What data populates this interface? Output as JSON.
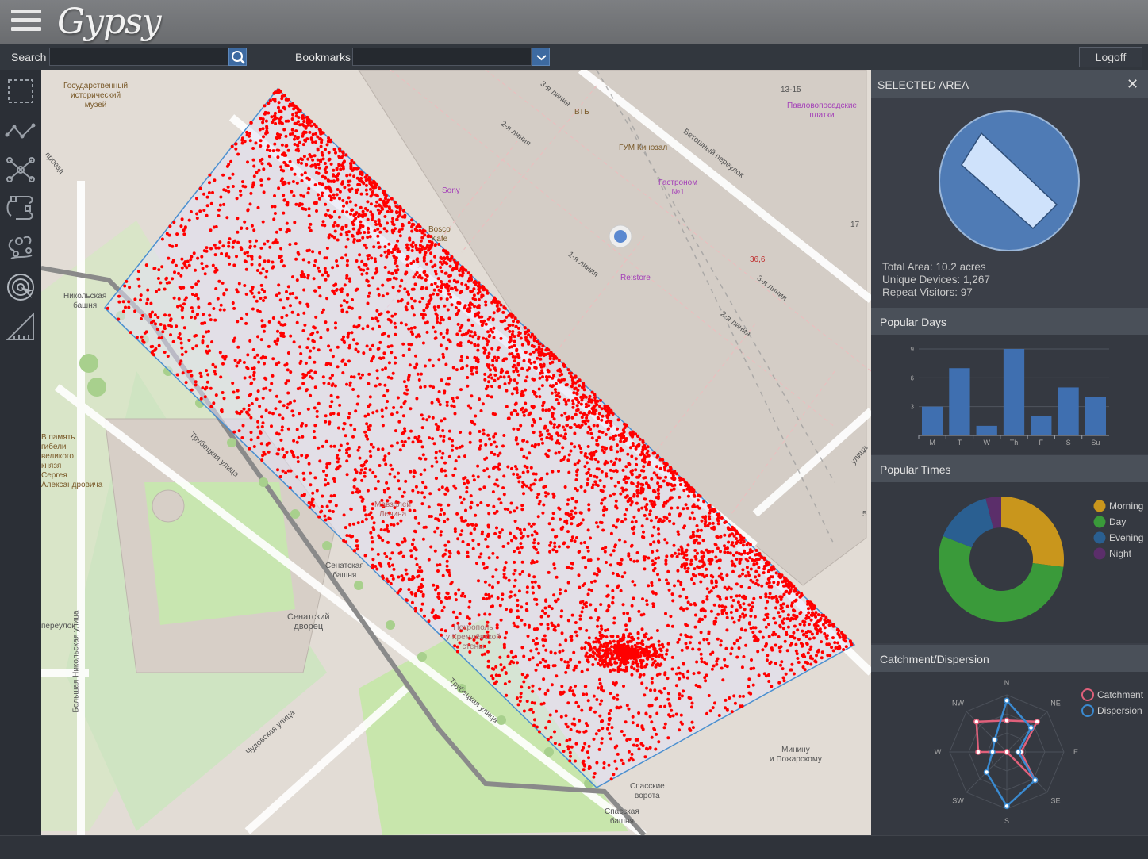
{
  "app": {
    "logo": "Gypsy"
  },
  "toolbar": {
    "search_label": "Search",
    "search_value": "",
    "bookmarks_label": "Bookmarks",
    "bookmarks_value": "",
    "logoff_label": "Logoff"
  },
  "tools": [
    {
      "name": "select-rectangle-icon"
    },
    {
      "name": "polyline-icon"
    },
    {
      "name": "network-icon"
    },
    {
      "name": "route-icon"
    },
    {
      "name": "flow-icon"
    },
    {
      "name": "target-icon"
    },
    {
      "name": "ruler-icon"
    }
  ],
  "map": {
    "labels": {
      "museum": "Государственный\nисторический\nмузей",
      "sony": "Sony",
      "vtb": "ВТБ",
      "gum_cinema": "ГУМ Кинозал",
      "gastronom": "Гастроном\n№1",
      "restore": "Re:store",
      "pharmacy": "36,6",
      "shawls": "Павловопосадские\nплатки",
      "house_num": "13-15",
      "num17": "17",
      "num5": "5",
      "line1": "1-я линия",
      "line2a": "2-я линия",
      "line2b": "2-я линия",
      "line3a": "3-я линия",
      "line3b": "3-я линия",
      "vetoshny": "Ветошный переулок",
      "nikolskaya_tower": "Никольская\nбашня",
      "senate_tower": "Сенатская\nбашня",
      "senate_palace": "Сенатский\nдворец",
      "trubetskaya1": "Трубецкая улица",
      "trubetskaya2": "Трубецкая улица",
      "chudovskaya": "Чудовская улица",
      "b_nikolskaya": "Большая Никольская улица",
      "mausoleum": "Мавзолей\nЛенина",
      "necropolis": "Некрополь\nу Кремлёвской\nстены",
      "spasskie": "Спасские\nворота",
      "spasskaya": "Спасская\nбашня",
      "minin": "Минину\nи Пожарскому",
      "memorial": "В память\nгибели\nвеликого\nкнязя\nСергея\nАлександровича",
      "pereulok": "переулок",
      "proezd": "проезд",
      "ulitsa": "улица",
      "bosco": "Bosco\nKafe"
    }
  },
  "panel": {
    "title": "SELECTED AREA",
    "close": "✕",
    "stats": {
      "total_area": "Total Area: 10.2 acres",
      "unique_devices": "Unique Devices: 1,267",
      "repeat_visitors": "Repeat Visitors: 97"
    },
    "popular_days_title": "Popular Days",
    "popular_times_title": "Popular Times",
    "catchment_title": "Catchment/Dispersion"
  },
  "chart_data": [
    {
      "type": "bar",
      "title": "Popular Days",
      "categories": [
        "M",
        "T",
        "W",
        "Th",
        "F",
        "S",
        "Su"
      ],
      "values": [
        3,
        7,
        1,
        9,
        2,
        5,
        4
      ],
      "ylim": [
        0,
        9
      ],
      "yticks": [
        3,
        6,
        9
      ],
      "color": "#3f6fb0"
    },
    {
      "type": "pie",
      "title": "Popular Times",
      "donut": true,
      "slices": [
        {
          "label": "Morning",
          "value": 27,
          "color": "#c9961c"
        },
        {
          "label": "Day",
          "value": 54,
          "color": "#3a9a3a"
        },
        {
          "label": "Evening",
          "value": 15,
          "color": "#2a5f91"
        },
        {
          "label": "Night",
          "value": 4,
          "color": "#5b2e6a"
        }
      ],
      "legend": "right"
    },
    {
      "type": "radar",
      "title": "Catchment/Dispersion",
      "axes": [
        "N",
        "NE",
        "E",
        "SE",
        "S",
        "SW",
        "W",
        "NW"
      ],
      "series": [
        {
          "name": "Catchment",
          "color": "#e0607a",
          "values": [
            0.55,
            0.75,
            0.25,
            0.7,
            0.0,
            0.0,
            0.5,
            0.75
          ]
        },
        {
          "name": "Dispersion",
          "color": "#3a8ad0",
          "values": [
            0.9,
            0.6,
            0.2,
            0.7,
            0.95,
            0.5,
            0.25,
            0.3
          ]
        }
      ],
      "legend": "right"
    }
  ]
}
